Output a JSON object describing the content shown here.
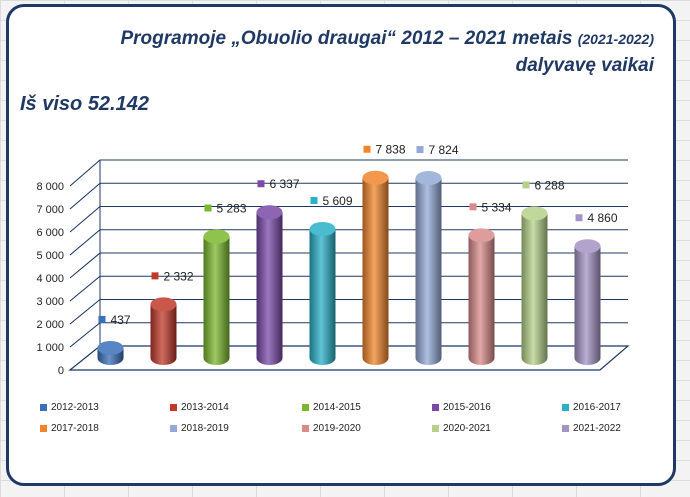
{
  "title": {
    "main": "Programoje „Obuolio draugai“ 2012 – 2021 metais ",
    "small": "(2021-2022)",
    "line2": "dalyvavę vaikai"
  },
  "total_text": "Iš viso 52.142",
  "chart_data": {
    "type": "bar",
    "categories": [
      "2012-2013",
      "2013-2014",
      "2014-2015",
      "2015-2016",
      "2016-2017",
      "2017-2018",
      "2018-2019",
      "2019-2020",
      "2020-2021",
      "2021-2022"
    ],
    "values": [
      437,
      2332,
      5283,
      6337,
      5609,
      7838,
      7824,
      5334,
      6288,
      4860
    ],
    "value_labels": [
      "437",
      "2 332",
      "5 283",
      "6 337",
      "5 609",
      "7 838",
      "7 824",
      "5 334",
      "6 288",
      "4 860"
    ],
    "colors": [
      "#3a6fba",
      "#c0392b",
      "#7cb82f",
      "#7a4aa8",
      "#2ab0c8",
      "#f0852b",
      "#93a9d6",
      "#d98b8b",
      "#b5d18a",
      "#a493c4"
    ],
    "ylim": [
      0,
      8000
    ],
    "yticks": [
      0,
      1000,
      2000,
      3000,
      4000,
      5000,
      6000,
      7000,
      8000
    ],
    "ytick_labels": [
      "0",
      "1 000",
      "2 000",
      "3 000",
      "4 000",
      "5 000",
      "6 000",
      "7 000",
      "8 000"
    ],
    "grid": true,
    "legend_position": "bottom"
  }
}
